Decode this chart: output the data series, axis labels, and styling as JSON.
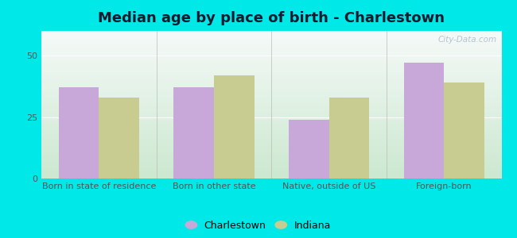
{
  "title": "Median age by place of birth - Charlestown",
  "categories": [
    "Born in state of residence",
    "Born in other state",
    "Native, outside of US",
    "Foreign-born"
  ],
  "charlestown_values": [
    37,
    37,
    24,
    47
  ],
  "indiana_values": [
    33,
    42,
    33,
    39
  ],
  "charlestown_color": "#c8a8d8",
  "indiana_color": "#c8cc90",
  "yticks": [
    0,
    25,
    50
  ],
  "ylim": [
    0,
    60
  ],
  "bar_width": 0.35,
  "legend_charlestown": "Charlestown",
  "legend_indiana": "Indiana",
  "bg_color_outer": "#00e8e8",
  "bg_grad_topleft": "#e8f5e8",
  "bg_grad_topright": "#f0faf8",
  "bg_grad_bottom": "#d0ecd8",
  "title_fontsize": 13,
  "tick_fontsize": 8,
  "legend_fontsize": 9,
  "watermark_text": "City-Data.com"
}
